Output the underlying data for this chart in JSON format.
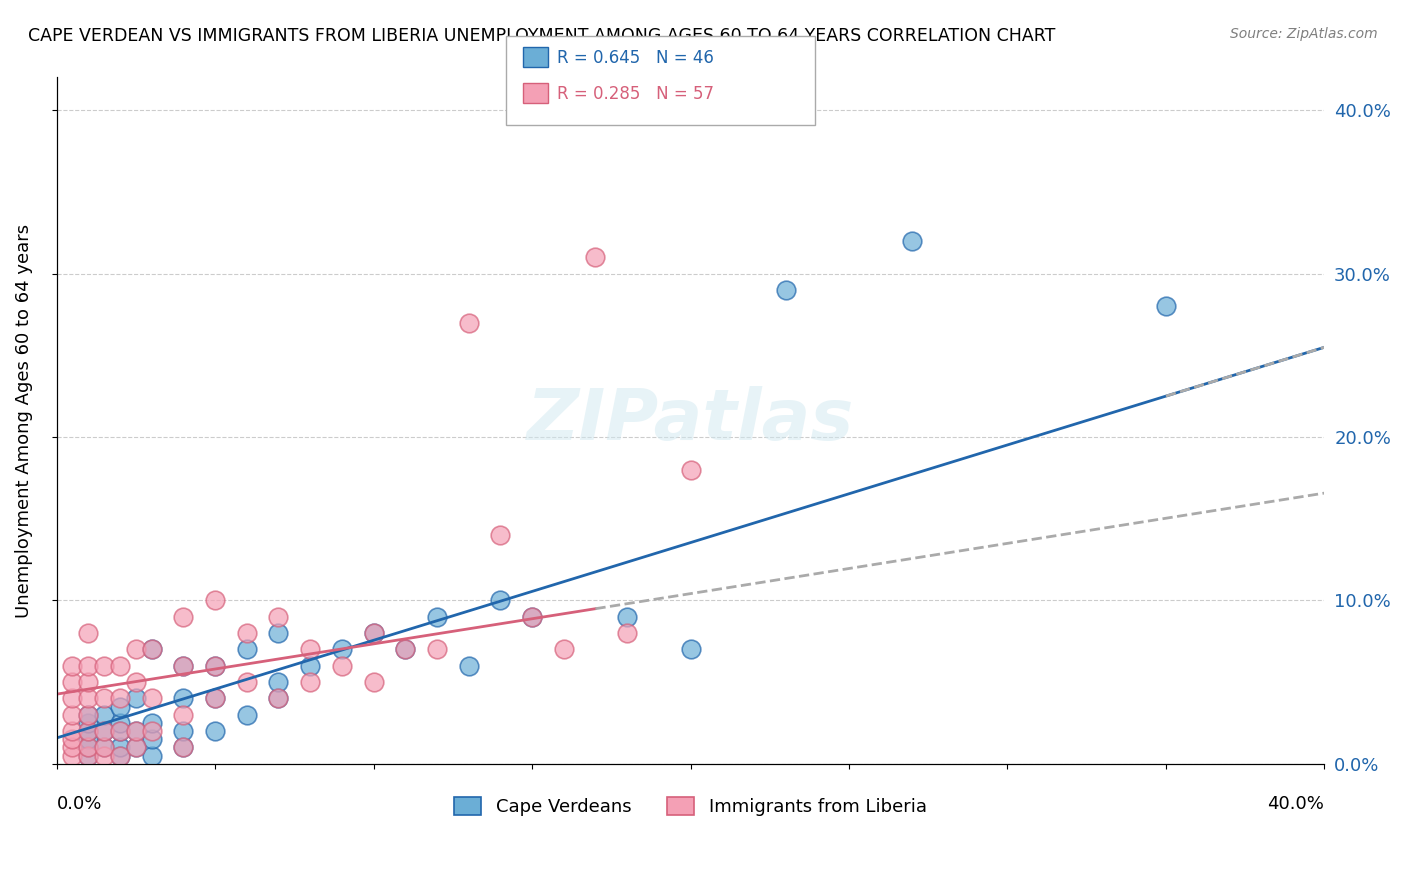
{
  "title": "CAPE VERDEAN VS IMMIGRANTS FROM LIBERIA UNEMPLOYMENT AMONG AGES 60 TO 64 YEARS CORRELATION CHART",
  "source": "Source: ZipAtlas.com",
  "ylabel": "Unemployment Among Ages 60 to 64 years",
  "watermark": "ZIPatlas",
  "blue_R": 0.645,
  "blue_N": 46,
  "pink_R": 0.285,
  "pink_N": 57,
  "blue_label": "Cape Verdeans",
  "pink_label": "Immigrants from Liberia",
  "blue_color": "#6baed6",
  "pink_color": "#f4a0b5",
  "blue_line_color": "#2166ac",
  "pink_line_color": "#d6607a",
  "trend_dash_color": "#aaaaaa",
  "xlim": [
    0.0,
    0.4
  ],
  "ylim": [
    0.0,
    0.42
  ],
  "blue_scatter_x": [
    0.01,
    0.01,
    0.01,
    0.01,
    0.01,
    0.01,
    0.015,
    0.015,
    0.015,
    0.02,
    0.02,
    0.02,
    0.02,
    0.02,
    0.025,
    0.025,
    0.025,
    0.03,
    0.03,
    0.03,
    0.03,
    0.04,
    0.04,
    0.04,
    0.04,
    0.05,
    0.05,
    0.05,
    0.06,
    0.06,
    0.07,
    0.07,
    0.07,
    0.08,
    0.09,
    0.1,
    0.11,
    0.12,
    0.13,
    0.14,
    0.15,
    0.18,
    0.2,
    0.23,
    0.27,
    0.35
  ],
  "blue_scatter_y": [
    0.005,
    0.01,
    0.015,
    0.02,
    0.025,
    0.03,
    0.01,
    0.02,
    0.03,
    0.005,
    0.01,
    0.02,
    0.025,
    0.035,
    0.01,
    0.02,
    0.04,
    0.005,
    0.015,
    0.025,
    0.07,
    0.01,
    0.02,
    0.04,
    0.06,
    0.02,
    0.04,
    0.06,
    0.03,
    0.07,
    0.04,
    0.05,
    0.08,
    0.06,
    0.07,
    0.08,
    0.07,
    0.09,
    0.06,
    0.1,
    0.09,
    0.09,
    0.07,
    0.29,
    0.32,
    0.28
  ],
  "pink_scatter_x": [
    0.005,
    0.005,
    0.005,
    0.005,
    0.005,
    0.005,
    0.005,
    0.005,
    0.01,
    0.01,
    0.01,
    0.01,
    0.01,
    0.01,
    0.01,
    0.01,
    0.015,
    0.015,
    0.015,
    0.015,
    0.015,
    0.02,
    0.02,
    0.02,
    0.02,
    0.025,
    0.025,
    0.025,
    0.025,
    0.03,
    0.03,
    0.03,
    0.04,
    0.04,
    0.04,
    0.04,
    0.05,
    0.05,
    0.05,
    0.06,
    0.06,
    0.07,
    0.07,
    0.08,
    0.08,
    0.09,
    0.1,
    0.1,
    0.11,
    0.12,
    0.13,
    0.14,
    0.15,
    0.16,
    0.17,
    0.18,
    0.2
  ],
  "pink_scatter_y": [
    0.005,
    0.01,
    0.015,
    0.02,
    0.03,
    0.04,
    0.05,
    0.06,
    0.005,
    0.01,
    0.02,
    0.03,
    0.04,
    0.05,
    0.06,
    0.08,
    0.005,
    0.01,
    0.02,
    0.04,
    0.06,
    0.005,
    0.02,
    0.04,
    0.06,
    0.01,
    0.02,
    0.05,
    0.07,
    0.02,
    0.04,
    0.07,
    0.01,
    0.03,
    0.06,
    0.09,
    0.04,
    0.06,
    0.1,
    0.05,
    0.08,
    0.04,
    0.09,
    0.05,
    0.07,
    0.06,
    0.05,
    0.08,
    0.07,
    0.07,
    0.27,
    0.14,
    0.09,
    0.07,
    0.31,
    0.08,
    0.18
  ]
}
